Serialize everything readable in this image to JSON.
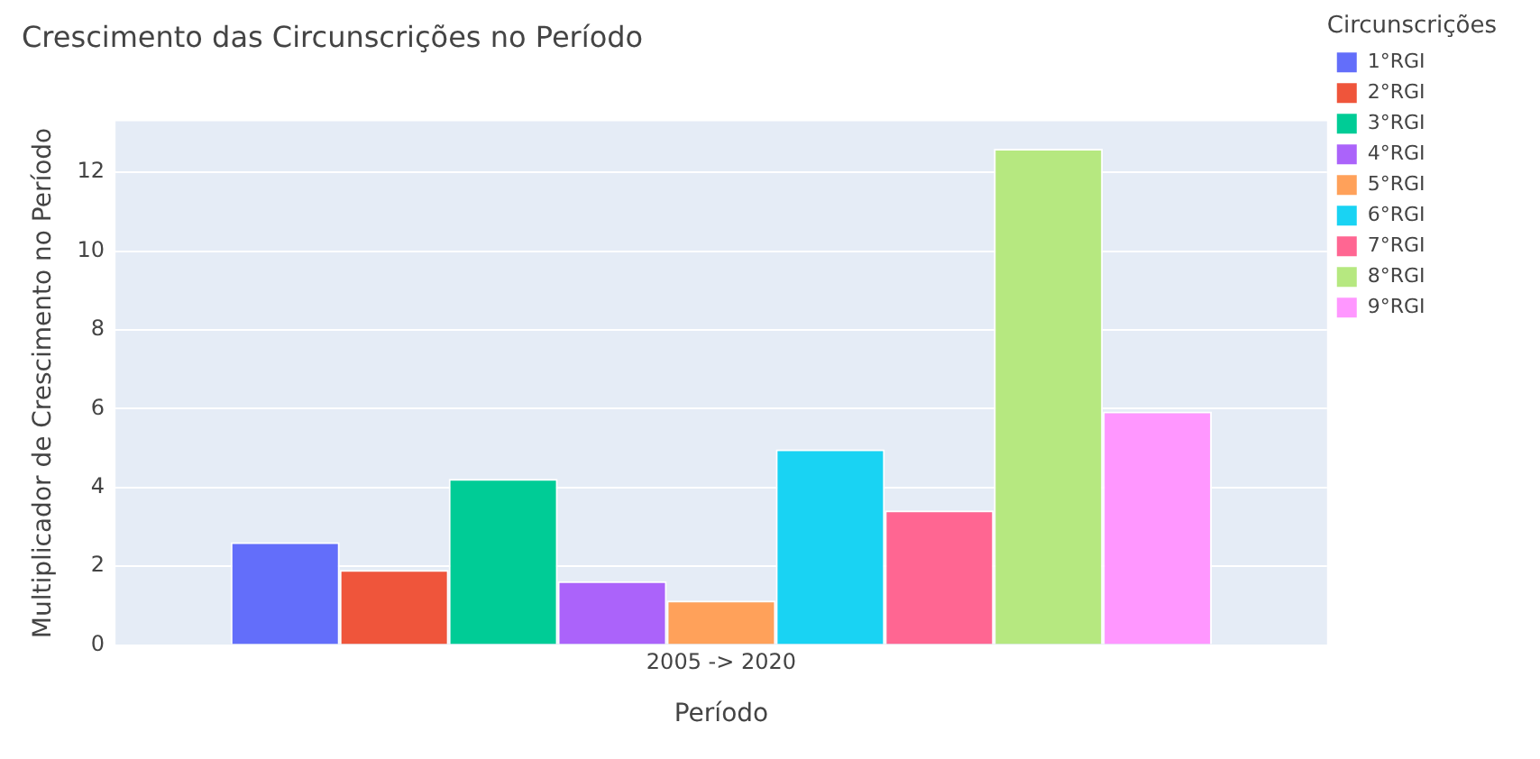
{
  "chart_data": {
    "type": "bar",
    "title": "Crescimento das Circunscrições no Período",
    "xlabel": "Período",
    "ylabel": "Multiplicador de Crescimento no Período",
    "legend_title": "Circunscrições",
    "categories": [
      "2005 -> 2020"
    ],
    "series": [
      {
        "name": "1°RGI",
        "color": "#636efa",
        "values": [
          2.61
        ]
      },
      {
        "name": "2°RGI",
        "color": "#ef553b",
        "values": [
          1.91
        ]
      },
      {
        "name": "3°RGI",
        "color": "#00cc96",
        "values": [
          4.22
        ]
      },
      {
        "name": "4°RGI",
        "color": "#ab63fa",
        "values": [
          1.62
        ]
      },
      {
        "name": "5°RGI",
        "color": "#ffa15a",
        "values": [
          1.13
        ]
      },
      {
        "name": "6°RGI",
        "color": "#19d3f3",
        "values": [
          4.97
        ]
      },
      {
        "name": "7°RGI",
        "color": "#ff6692",
        "values": [
          3.42
        ]
      },
      {
        "name": "8°RGI",
        "color": "#b6e880",
        "values": [
          12.6
        ]
      },
      {
        "name": "9°RGI",
        "color": "#ff97ff",
        "values": [
          5.93
        ]
      }
    ],
    "ylim": [
      0,
      13.3
    ],
    "yticks": [
      0,
      2,
      4,
      6,
      8,
      10,
      12
    ],
    "grid": "y",
    "legend": "top right"
  }
}
